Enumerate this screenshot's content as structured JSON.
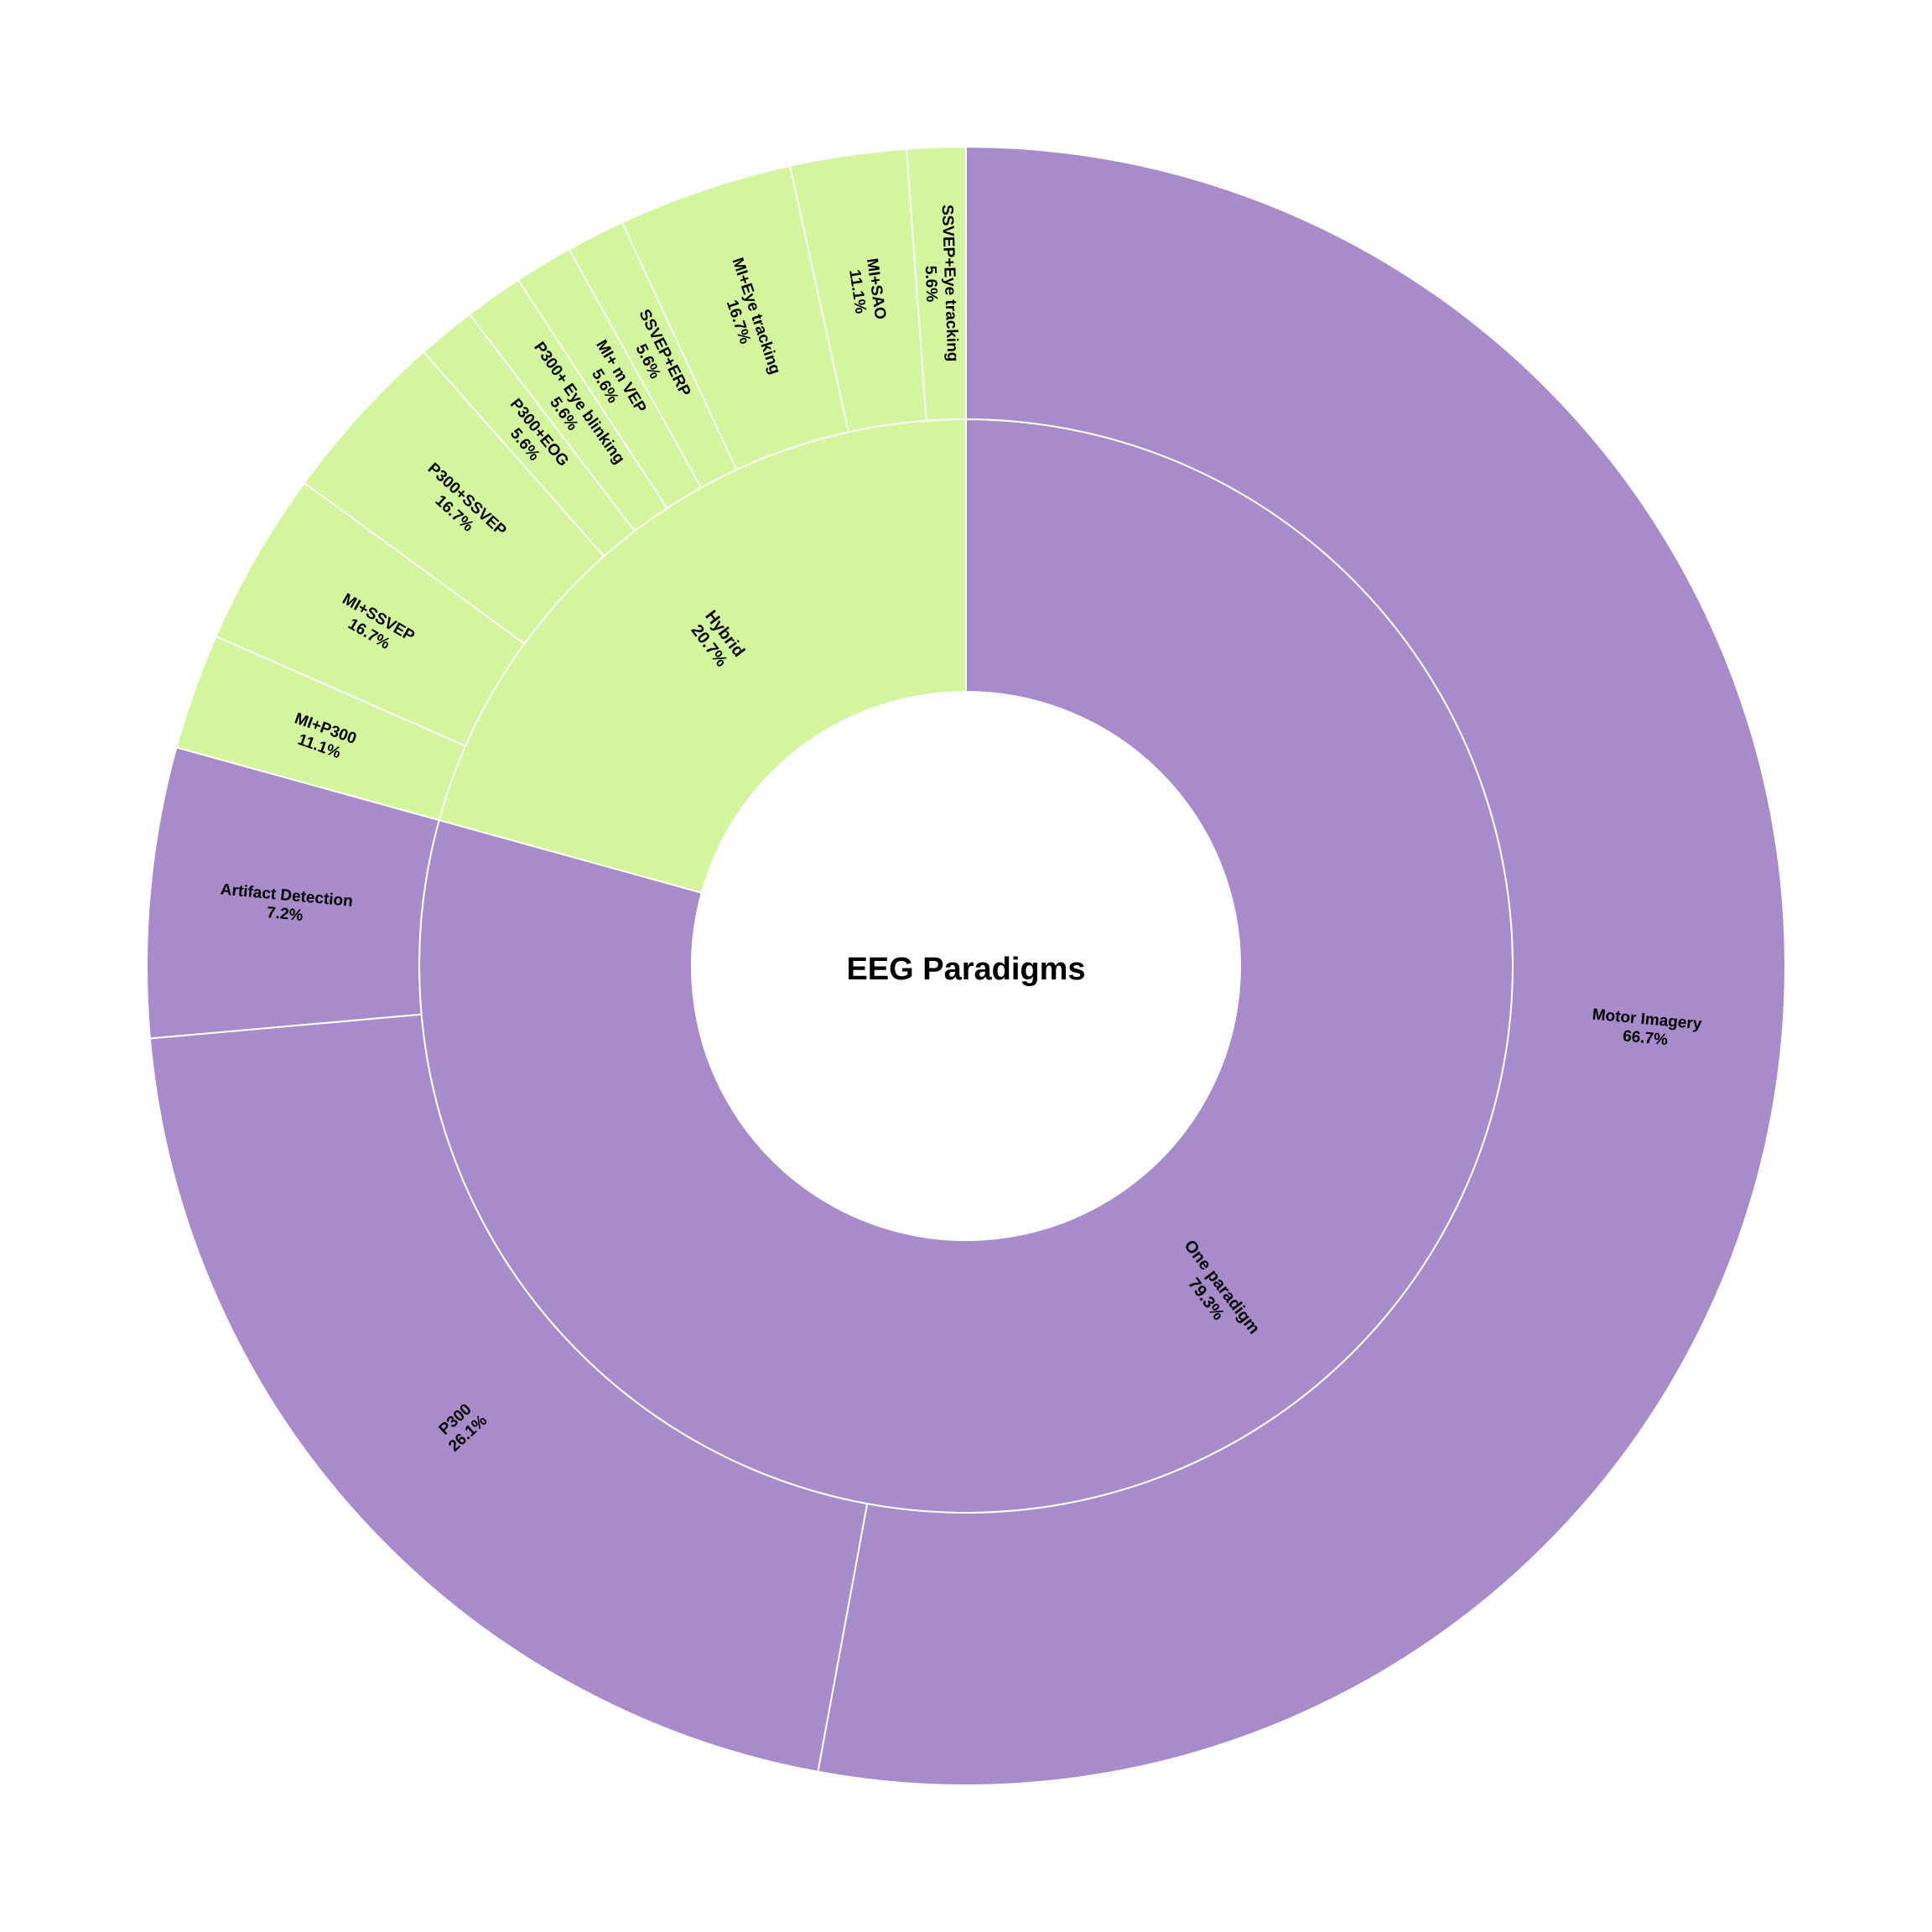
{
  "chart_data": {
    "type": "sunburst",
    "title": "EEG Paradigms",
    "colors": {
      "One paradigm": "#a78bca",
      "Hybrid": "#d2f59d",
      "edge": "#ffffff"
    },
    "inner_ring": [
      {
        "name": "One paradigm",
        "percent": 79.3,
        "label": "One paradigm\n79.3%"
      },
      {
        "name": "Hybrid",
        "percent": 20.7,
        "label": "Hybrid\n20.7%"
      }
    ],
    "outer_ring": [
      {
        "parent": "One paradigm",
        "name": "Motor Imagery",
        "percent_of_parent": 66.7,
        "label": "Motor Imagery\n66.7%"
      },
      {
        "parent": "One paradigm",
        "name": "P300",
        "percent_of_parent": 26.1,
        "label": "P300\n26.1%"
      },
      {
        "parent": "One paradigm",
        "name": "Artifact Detection",
        "percent_of_parent": 7.2,
        "label": "Artifact Detection\n7.2%"
      },
      {
        "parent": "Hybrid",
        "name": "MI+P300",
        "percent_of_parent": 11.1,
        "label": "MI+P300\n11.1%"
      },
      {
        "parent": "Hybrid",
        "name": "MI+SSVEP",
        "percent_of_parent": 16.7,
        "label": "MI+SSVEP\n16.7%"
      },
      {
        "parent": "Hybrid",
        "name": "P300+SSVEP",
        "percent_of_parent": 16.7,
        "label": "P300+SSVEP\n16.7%"
      },
      {
        "parent": "Hybrid",
        "name": "P300+EOG",
        "percent_of_parent": 5.6,
        "label": "P300+EOG\n5.6%"
      },
      {
        "parent": "Hybrid",
        "name": "P300+ Eye blinking",
        "percent_of_parent": 5.6,
        "label": "P300+ Eye blinking\n5.6%"
      },
      {
        "parent": "Hybrid",
        "name": "MI+ m VEP",
        "percent_of_parent": 5.6,
        "label": "MI+ m VEP\n5.6%"
      },
      {
        "parent": "Hybrid",
        "name": "SSVEP+ERP",
        "percent_of_parent": 5.6,
        "label": "SSVEP+ERP\n5.6%"
      },
      {
        "parent": "Hybrid",
        "name": "MI+Eye tracking",
        "percent_of_parent": 16.7,
        "label": "MI+Eye tracking\n16.7%"
      },
      {
        "parent": "Hybrid",
        "name": "MI+SAO",
        "percent_of_parent": 11.1,
        "label": "MI+SAO\n11.1%"
      },
      {
        "parent": "Hybrid",
        "name": "SSVEP+Eye tracking",
        "percent_of_parent": 5.6,
        "label": "SSVEP+Eye tracking\n5.6%"
      }
    ]
  }
}
